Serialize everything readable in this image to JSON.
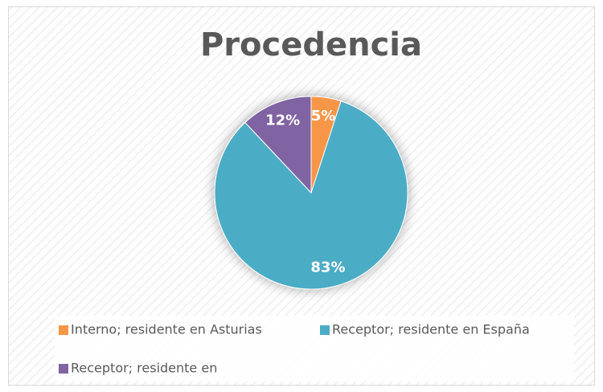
{
  "chart_data": {
    "type": "pie",
    "title": "Procedencia",
    "categories": [
      "Interno; residente en Asturias",
      "Receptor; residente en España",
      "Receptor; residente en"
    ],
    "values": [
      5,
      83,
      12
    ],
    "value_labels": [
      "5%",
      "83%",
      "12%"
    ],
    "colors": [
      "#f79646",
      "#4bacc6",
      "#8064a2"
    ]
  }
}
